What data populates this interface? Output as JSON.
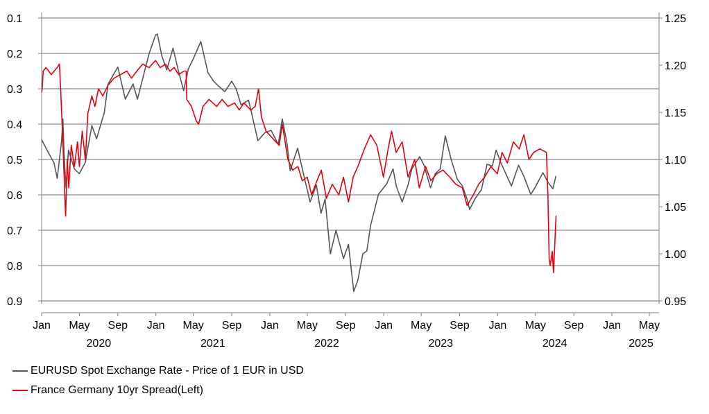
{
  "chart_data": {
    "type": "line",
    "x_axis": {
      "type": "date",
      "range": [
        "2020-01-01",
        "2025-06-01"
      ],
      "month_ticks": [
        "2020-01",
        "2020-05",
        "2020-09",
        "2021-01",
        "2021-05",
        "2021-09",
        "2022-01",
        "2022-05",
        "2022-09",
        "2023-01",
        "2023-05",
        "2023-09",
        "2024-01",
        "2024-05",
        "2024-09",
        "2025-01",
        "2025-05"
      ],
      "month_labels": [
        "Jan",
        "May",
        "Sep",
        "Jan",
        "May",
        "Sep",
        "Jan",
        "May",
        "Sep",
        "Jan",
        "May",
        "Sep",
        "Jan",
        "May",
        "Sep",
        "Jan",
        "May"
      ],
      "year_labels": [
        "2020",
        "2021",
        "2022",
        "2023",
        "2024",
        "2025"
      ]
    },
    "y_left": {
      "range": [
        0.1,
        0.9
      ],
      "inverted": true,
      "ticks": [
        0.1,
        0.2,
        0.3,
        0.4,
        0.5,
        0.6,
        0.7,
        0.8,
        0.9
      ],
      "tick_labels": [
        "0.1",
        "0.2",
        "0.3",
        "0.4",
        "0.5",
        "0.6",
        "0.7",
        "0.8",
        "0.9"
      ]
    },
    "y_right": {
      "range": [
        0.95,
        1.25
      ],
      "ticks": [
        0.95,
        1.0,
        1.05,
        1.1,
        1.15,
        1.2,
        1.25
      ],
      "tick_labels": [
        "0.95",
        "1.00",
        "1.05",
        "1.10",
        "1.15",
        "1.20",
        "1.25"
      ]
    },
    "grid": "horizontal",
    "legend_position": "bottom-left",
    "series": [
      {
        "name": "EURUSD Spot Exchange Rate - Price of 1 EUR in USD",
        "axis": "right",
        "color": "#555555",
        "points": [
          [
            "2020-01-01",
            1.121
          ],
          [
            "2020-01-20",
            1.109
          ],
          [
            "2020-02-10",
            1.096
          ],
          [
            "2020-02-20",
            1.08
          ],
          [
            "2020-03-05",
            1.12
          ],
          [
            "2020-03-09",
            1.143
          ],
          [
            "2020-03-13",
            1.105
          ],
          [
            "2020-03-19",
            1.07
          ],
          [
            "2020-03-27",
            1.11
          ],
          [
            "2020-04-15",
            1.09
          ],
          [
            "2020-05-01",
            1.085
          ],
          [
            "2020-05-20",
            1.097
          ],
          [
            "2020-06-10",
            1.136
          ],
          [
            "2020-06-25",
            1.122
          ],
          [
            "2020-07-20",
            1.15
          ],
          [
            "2020-08-01",
            1.18
          ],
          [
            "2020-09-01",
            1.198
          ],
          [
            "2020-09-25",
            1.164
          ],
          [
            "2020-10-20",
            1.18
          ],
          [
            "2020-11-03",
            1.164
          ],
          [
            "2020-11-20",
            1.186
          ],
          [
            "2020-12-10",
            1.212
          ],
          [
            "2020-12-31",
            1.232
          ],
          [
            "2021-01-06",
            1.233
          ],
          [
            "2021-01-20",
            1.21
          ],
          [
            "2021-02-05",
            1.195
          ],
          [
            "2021-02-25",
            1.218
          ],
          [
            "2021-03-15",
            1.193
          ],
          [
            "2021-03-31",
            1.173
          ],
          [
            "2021-04-15",
            1.196
          ],
          [
            "2021-05-01",
            1.207
          ],
          [
            "2021-05-25",
            1.225
          ],
          [
            "2021-06-17",
            1.192
          ],
          [
            "2021-07-05",
            1.183
          ],
          [
            "2021-07-20",
            1.178
          ],
          [
            "2021-08-10",
            1.172
          ],
          [
            "2021-09-01",
            1.183
          ],
          [
            "2021-09-15",
            1.175
          ],
          [
            "2021-10-01",
            1.158
          ],
          [
            "2021-10-25",
            1.163
          ],
          [
            "2021-11-24",
            1.12
          ],
          [
            "2021-12-15",
            1.128
          ],
          [
            "2022-01-05",
            1.131
          ],
          [
            "2022-01-28",
            1.116
          ],
          [
            "2022-02-10",
            1.143
          ],
          [
            "2022-02-25",
            1.117
          ],
          [
            "2022-03-07",
            1.088
          ],
          [
            "2022-03-31",
            1.112
          ],
          [
            "2022-04-20",
            1.083
          ],
          [
            "2022-05-10",
            1.055
          ],
          [
            "2022-05-30",
            1.073
          ],
          [
            "2022-06-14",
            1.043
          ],
          [
            "2022-06-27",
            1.058
          ],
          [
            "2022-07-14",
            1.0
          ],
          [
            "2022-08-01",
            1.025
          ],
          [
            "2022-08-25",
            0.995
          ],
          [
            "2022-09-10",
            1.01
          ],
          [
            "2022-09-27",
            0.96
          ],
          [
            "2022-10-10",
            0.972
          ],
          [
            "2022-10-26",
            1.0
          ],
          [
            "2022-11-08",
            1.003
          ],
          [
            "2022-11-20",
            1.03
          ],
          [
            "2022-12-15",
            1.063
          ],
          [
            "2023-01-10",
            1.074
          ],
          [
            "2023-01-31",
            1.09
          ],
          [
            "2023-02-10",
            1.072
          ],
          [
            "2023-03-01",
            1.055
          ],
          [
            "2023-03-20",
            1.073
          ],
          [
            "2023-04-01",
            1.09
          ],
          [
            "2023-04-26",
            1.103
          ],
          [
            "2023-05-10",
            1.094
          ],
          [
            "2023-05-31",
            1.07
          ],
          [
            "2023-06-15",
            1.085
          ],
          [
            "2023-07-01",
            1.09
          ],
          [
            "2023-07-17",
            1.125
          ],
          [
            "2023-08-05",
            1.1
          ],
          [
            "2023-08-25",
            1.079
          ],
          [
            "2023-09-10",
            1.072
          ],
          [
            "2023-09-25",
            1.058
          ],
          [
            "2023-10-03",
            1.047
          ],
          [
            "2023-10-20",
            1.058
          ],
          [
            "2023-11-10",
            1.068
          ],
          [
            "2023-11-28",
            1.095
          ],
          [
            "2023-12-15",
            1.093
          ],
          [
            "2023-12-27",
            1.11
          ],
          [
            "2024-01-12",
            1.096
          ],
          [
            "2024-01-31",
            1.082
          ],
          [
            "2024-02-14",
            1.072
          ],
          [
            "2024-03-08",
            1.094
          ],
          [
            "2024-03-25",
            1.082
          ],
          [
            "2024-04-16",
            1.063
          ],
          [
            "2024-05-01",
            1.071
          ],
          [
            "2024-05-25",
            1.086
          ],
          [
            "2024-06-10",
            1.076
          ],
          [
            "2024-06-26",
            1.069
          ],
          [
            "2024-07-05",
            1.082
          ]
        ]
      },
      {
        "name": "France Germany 10yr Spread(Left)",
        "axis": "left",
        "color": "#e3000f",
        "points": [
          [
            "2020-01-01",
            0.31
          ],
          [
            "2020-01-03",
            0.3
          ],
          [
            "2020-01-06",
            0.25
          ],
          [
            "2020-01-15",
            0.24
          ],
          [
            "2020-02-01",
            0.26
          ],
          [
            "2020-02-10",
            0.25
          ],
          [
            "2020-02-20",
            0.24
          ],
          [
            "2020-02-27",
            0.23
          ],
          [
            "2020-03-02",
            0.3
          ],
          [
            "2020-03-10",
            0.47
          ],
          [
            "2020-03-16",
            0.62
          ],
          [
            "2020-03-18",
            0.66
          ],
          [
            "2020-03-23",
            0.5
          ],
          [
            "2020-03-28",
            0.58
          ],
          [
            "2020-04-05",
            0.46
          ],
          [
            "2020-04-15",
            0.52
          ],
          [
            "2020-04-25",
            0.45
          ],
          [
            "2020-05-01",
            0.52
          ],
          [
            "2020-05-10",
            0.42
          ],
          [
            "2020-05-20",
            0.5
          ],
          [
            "2020-05-28",
            0.37
          ],
          [
            "2020-06-10",
            0.32
          ],
          [
            "2020-06-20",
            0.35
          ],
          [
            "2020-07-01",
            0.3
          ],
          [
            "2020-07-15",
            0.32
          ],
          [
            "2020-08-01",
            0.29
          ],
          [
            "2020-08-20",
            0.27
          ],
          [
            "2020-09-10",
            0.26
          ],
          [
            "2020-09-30",
            0.25
          ],
          [
            "2020-10-15",
            0.27
          ],
          [
            "2020-11-01",
            0.25
          ],
          [
            "2020-11-20",
            0.23
          ],
          [
            "2020-12-10",
            0.24
          ],
          [
            "2020-12-31",
            0.22
          ],
          [
            "2021-01-15",
            0.24
          ],
          [
            "2021-02-01",
            0.23
          ],
          [
            "2021-02-15",
            0.25
          ],
          [
            "2021-03-01",
            0.24
          ],
          [
            "2021-03-15",
            0.26
          ],
          [
            "2021-04-01",
            0.25
          ],
          [
            "2021-04-08",
            0.25
          ],
          [
            "2021-04-10",
            0.33
          ],
          [
            "2021-04-25",
            0.35
          ],
          [
            "2021-05-10",
            0.39
          ],
          [
            "2021-05-18",
            0.4
          ],
          [
            "2021-06-01",
            0.35
          ],
          [
            "2021-06-20",
            0.33
          ],
          [
            "2021-07-15",
            0.35
          ],
          [
            "2021-08-01",
            0.33
          ],
          [
            "2021-08-20",
            0.35
          ],
          [
            "2021-09-10",
            0.34
          ],
          [
            "2021-09-25",
            0.36
          ],
          [
            "2021-10-10",
            0.34
          ],
          [
            "2021-11-01",
            0.36
          ],
          [
            "2021-11-15",
            0.35
          ],
          [
            "2021-11-26",
            0.3
          ],
          [
            "2021-12-05",
            0.38
          ],
          [
            "2021-12-20",
            0.42
          ],
          [
            "2022-01-10",
            0.44
          ],
          [
            "2022-01-31",
            0.46
          ],
          [
            "2022-02-10",
            0.4
          ],
          [
            "2022-02-28",
            0.5
          ],
          [
            "2022-03-15",
            0.53
          ],
          [
            "2022-04-01",
            0.52
          ],
          [
            "2022-04-15",
            0.56
          ],
          [
            "2022-05-01",
            0.55
          ],
          [
            "2022-05-15",
            0.6
          ],
          [
            "2022-06-01",
            0.56
          ],
          [
            "2022-06-15",
            0.53
          ],
          [
            "2022-07-01",
            0.61
          ],
          [
            "2022-07-20",
            0.57
          ],
          [
            "2022-08-10",
            0.6
          ],
          [
            "2022-08-25",
            0.55
          ],
          [
            "2022-09-10",
            0.62
          ],
          [
            "2022-09-25",
            0.55
          ],
          [
            "2022-10-10",
            0.52
          ],
          [
            "2022-10-31",
            0.47
          ],
          [
            "2022-11-20",
            0.43
          ],
          [
            "2022-12-10",
            0.46
          ],
          [
            "2022-12-31",
            0.55
          ],
          [
            "2023-01-15",
            0.47
          ],
          [
            "2023-01-26",
            0.42
          ],
          [
            "2023-02-10",
            0.48
          ],
          [
            "2023-03-01",
            0.45
          ],
          [
            "2023-03-20",
            0.55
          ],
          [
            "2023-04-10",
            0.5
          ],
          [
            "2023-04-25",
            0.58
          ],
          [
            "2023-05-15",
            0.52
          ],
          [
            "2023-06-01",
            0.56
          ],
          [
            "2023-06-20",
            0.54
          ],
          [
            "2023-07-10",
            0.53
          ],
          [
            "2023-08-01",
            0.55
          ],
          [
            "2023-08-20",
            0.57
          ],
          [
            "2023-09-10",
            0.58
          ],
          [
            "2023-09-25",
            0.63
          ],
          [
            "2023-10-15",
            0.6
          ],
          [
            "2023-11-01",
            0.57
          ],
          [
            "2023-11-20",
            0.55
          ],
          [
            "2023-12-10",
            0.52
          ],
          [
            "2023-12-31",
            0.54
          ],
          [
            "2024-01-15",
            0.48
          ],
          [
            "2024-02-01",
            0.51
          ],
          [
            "2024-02-20",
            0.45
          ],
          [
            "2024-03-10",
            0.47
          ],
          [
            "2024-03-25",
            0.43
          ],
          [
            "2024-04-10",
            0.5
          ],
          [
            "2024-04-25",
            0.48
          ],
          [
            "2024-05-15",
            0.47
          ],
          [
            "2024-06-05",
            0.48
          ],
          [
            "2024-06-10",
            0.6
          ],
          [
            "2024-06-14",
            0.78
          ],
          [
            "2024-06-17",
            0.8
          ],
          [
            "2024-06-24",
            0.76
          ],
          [
            "2024-06-28",
            0.82
          ],
          [
            "2024-07-02",
            0.74
          ],
          [
            "2024-07-06",
            0.66
          ]
        ]
      }
    ]
  }
}
